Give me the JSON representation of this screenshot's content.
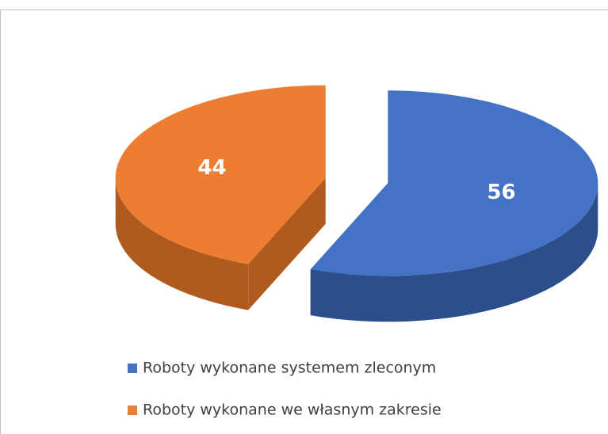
{
  "chart_data": {
    "type": "pie",
    "categories": [
      "Roboty wykonane systemem zleconym",
      "Roboty wykonane we własnym zakresie"
    ],
    "values": [
      56,
      44
    ],
    "colors": [
      "#4472c4",
      "#ed7d31"
    ],
    "side_colors": [
      "#2c4f8c",
      "#b05a20"
    ],
    "legend": "bottom",
    "three_d": true
  }
}
